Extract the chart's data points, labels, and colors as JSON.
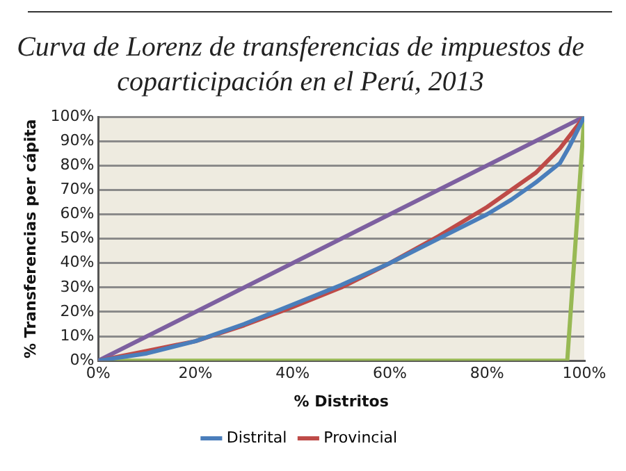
{
  "chart_data": {
    "type": "line",
    "title": [
      "Curva de Lorenz de transferencias de impuestos de",
      "coparticipación en el Perú, 2013"
    ],
    "xlabel": "% Distritos",
    "ylabel": "% Transferencias per cápita",
    "series": [
      {
        "name": "Distrital",
        "color": "#4a7ebb",
        "x": [
          0,
          10,
          20,
          30,
          40,
          50,
          60,
          70,
          80,
          85,
          90,
          95,
          97,
          100
        ],
        "values": [
          0,
          3,
          8,
          15,
          23,
          31,
          40,
          50,
          60,
          66,
          73,
          81,
          88,
          100
        ]
      },
      {
        "name": "Provincial",
        "color": "#be4b48",
        "x": [
          0,
          10,
          20,
          30,
          40,
          50,
          60,
          70,
          80,
          90,
          95,
          100
        ],
        "values": [
          0,
          4,
          8,
          14.5,
          22,
          30,
          40,
          51,
          63,
          77,
          87,
          100
        ]
      },
      {
        "color": "#7d60a0",
        "x": [
          0,
          100
        ],
        "values": [
          0,
          100
        ]
      },
      {
        "color": "#98b954",
        "x": [
          0,
          96.5,
          100
        ],
        "values": [
          0,
          0,
          100
        ]
      }
    ],
    "xlim": [
      0,
      100
    ],
    "ylim": [
      0,
      100
    ],
    "xticks": [
      {
        "value": 0,
        "label": "0%"
      },
      {
        "value": 20,
        "label": "20%"
      },
      {
        "value": 40,
        "label": "40%"
      },
      {
        "value": 60,
        "label": "60%"
      },
      {
        "value": 80,
        "label": "80%"
      },
      {
        "value": 100,
        "label": "100%"
      }
    ],
    "yticks": [
      {
        "value": 0,
        "label": "0%"
      },
      {
        "value": 10,
        "label": "10%"
      },
      {
        "value": 20,
        "label": "20%"
      },
      {
        "value": 30,
        "label": "30%"
      },
      {
        "value": 40,
        "label": "40%"
      },
      {
        "value": 50,
        "label": "50%"
      },
      {
        "value": 60,
        "label": "60%"
      },
      {
        "value": 70,
        "label": "70%"
      },
      {
        "value": 80,
        "label": "80%"
      },
      {
        "value": 90,
        "label": "90%"
      },
      {
        "value": 100,
        "label": "100%"
      }
    ],
    "grid": "y",
    "legend": "bottom",
    "marker": "none",
    "line_style": "solid"
  }
}
